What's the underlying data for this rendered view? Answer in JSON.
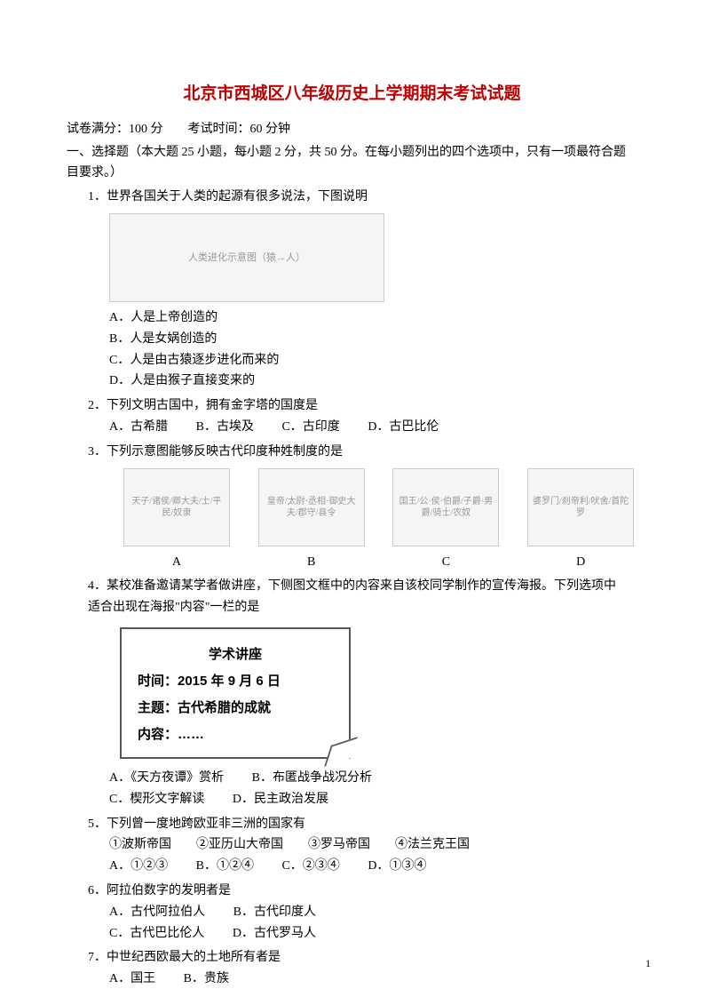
{
  "title_color": "#c00000",
  "title": "北京市西城区八年级历史上学期期末考试试题",
  "meta": "试卷满分：100 分　　考试时间：60 分钟",
  "section1": "一、选择题（本大题 25 小题，每小题 2 分，共 50 分。在每小题列出的四个选项中，只有一项最符合题目要求。）",
  "q1": {
    "stem": "1．世界各国关于人类的起源有很多说法，下图说明",
    "img_alt": "人类进化示意图（猿→人）",
    "A": "A．人是上帝创造的",
    "B": "B．人是女娲创造的",
    "C": "C．人是由古猿逐步进化而来的",
    "D": "D．人是由猴子直接变来的"
  },
  "q2": {
    "stem": "2．下列文明古国中，拥有金字塔的国度是",
    "A": "A．古希腊",
    "B": "B．古埃及",
    "C": "C．古印度",
    "D": "D．古巴比伦"
  },
  "q3": {
    "stem": "3．下列示意图能够反映古代印度种姓制度的是",
    "diagA": "天子/诸侯/卿大夫/士/平民/奴隶",
    "diagB": "皇帝/太尉·丞相·御史大夫/郡守/县令",
    "diagC": "国王/公·侯·伯爵/子爵·男爵/骑士/农奴",
    "diagD": "婆罗门/刹帝利/吠舍/首陀罗",
    "labelA": "A",
    "labelB": "B",
    "labelC": "C",
    "labelD": "D"
  },
  "q4": {
    "stem1": "4．某校准备邀请某学者做讲座，下侧图文框中的内容来自该校同学制作的宣传海报。下列选项中",
    "stem2": "适合出现在海报\"内容\"一栏的是",
    "poster_title": "学术讲座",
    "poster_time": "时间：2015 年 9 月 6 日",
    "poster_topic": "主题：古代希腊的成就",
    "poster_content": "内容：……",
    "A": "A．《天方夜谭》赏析",
    "B": "B．布匿战争战况分析",
    "C": "C．楔形文字解读",
    "D": "D．民主政治发展"
  },
  "q5": {
    "stem": "5．下列曾一度地跨欧亚非三洲的国家有",
    "items": "①波斯帝国　　②亚历山大帝国　　③罗马帝国　　④法兰克王国",
    "A": "A．①②③",
    "B": "B．①②④",
    "C": "C．②③④",
    "D": "D．①③④"
  },
  "q6": {
    "stem": "6．阿拉伯数字的发明者是",
    "A": "A．古代阿拉伯人",
    "B": "B．古代印度人",
    "C": "C．古代巴比伦人",
    "D": "D．古代罗马人"
  },
  "q7": {
    "stem": "7．中世纪西欧最大的土地所有者是",
    "A": "A．国王",
    "B": "B．贵族"
  },
  "page_num": "1"
}
